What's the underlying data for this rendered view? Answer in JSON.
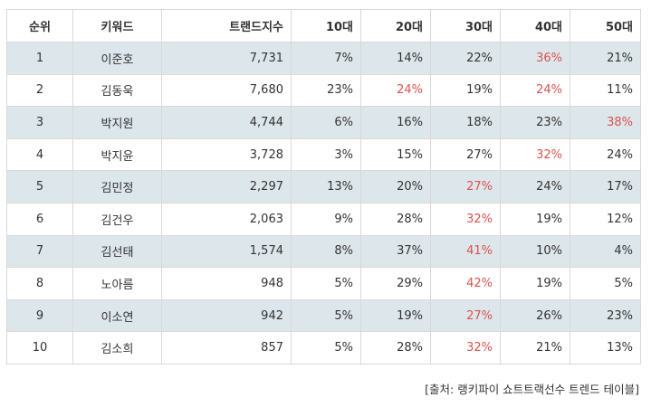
{
  "columns": [
    "순위",
    "키워드",
    "트랜드지수",
    "10대",
    "20대",
    "30대",
    "40대",
    "50대"
  ],
  "rows": [
    {
      "rank": "1",
      "keyword": "이준호",
      "index": "7,731",
      "a10": "7%",
      "a20": "14%",
      "a30": "22%",
      "a40": "36%",
      "a50": "21%",
      "hi": "a40"
    },
    {
      "rank": "2",
      "keyword": "김동욱",
      "index": "7,680",
      "a10": "23%",
      "a20": "24%",
      "a30": "19%",
      "a40": "24%",
      "a50": "11%",
      "hi": "a20,a40"
    },
    {
      "rank": "3",
      "keyword": "박지원",
      "index": "4,744",
      "a10": "6%",
      "a20": "16%",
      "a30": "18%",
      "a40": "23%",
      "a50": "38%",
      "hi": "a50"
    },
    {
      "rank": "4",
      "keyword": "박지윤",
      "index": "3,728",
      "a10": "3%",
      "a20": "15%",
      "a30": "27%",
      "a40": "32%",
      "a50": "24%",
      "hi": "a40"
    },
    {
      "rank": "5",
      "keyword": "김민정",
      "index": "2,297",
      "a10": "13%",
      "a20": "20%",
      "a30": "27%",
      "a40": "24%",
      "a50": "17%",
      "hi": "a30"
    },
    {
      "rank": "6",
      "keyword": "김건우",
      "index": "2,063",
      "a10": "9%",
      "a20": "28%",
      "a30": "32%",
      "a40": "19%",
      "a50": "12%",
      "hi": "a30"
    },
    {
      "rank": "7",
      "keyword": "김선태",
      "index": "1,574",
      "a10": "8%",
      "a20": "37%",
      "a30": "41%",
      "a40": "10%",
      "a50": "4%",
      "hi": "a30"
    },
    {
      "rank": "8",
      "keyword": "노아름",
      "index": "948",
      "a10": "5%",
      "a20": "29%",
      "a30": "42%",
      "a40": "19%",
      "a50": "5%",
      "hi": "a30"
    },
    {
      "rank": "9",
      "keyword": "이소연",
      "index": "942",
      "a10": "5%",
      "a20": "19%",
      "a30": "27%",
      "a40": "26%",
      "a50": "23%",
      "hi": "a30"
    },
    {
      "rank": "10",
      "keyword": "김소희",
      "index": "857",
      "a10": "5%",
      "a20": "28%",
      "a30": "32%",
      "a40": "21%",
      "a50": "13%",
      "hi": "a30"
    }
  ],
  "highlight_color": "#d9534f",
  "caption": "[출처: 랭키파이 쇼트트랙선수 트렌드 테이블]"
}
